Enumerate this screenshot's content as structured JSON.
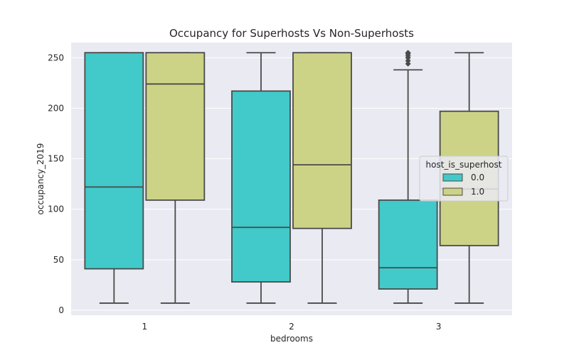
{
  "chart_data": {
    "type": "box",
    "title": "Occupancy for Superhosts Vs Non-Superhosts",
    "xlabel": "bedrooms",
    "ylabel": "occupancy_2019",
    "categories": [
      "1",
      "2",
      "3"
    ],
    "ylim": [
      -5,
      265
    ],
    "yticks": [
      0,
      50,
      100,
      150,
      200,
      250
    ],
    "grid": true,
    "legend": {
      "title": "host_is_superhost",
      "placement": "center-right",
      "entries": [
        "0.0",
        "1.0"
      ]
    },
    "series": [
      {
        "name": "0.0",
        "color": "#42c9c9",
        "boxes": [
          {
            "category": "1",
            "whislo": 7,
            "q1": 41,
            "med": 122,
            "q3": 255,
            "whishi": 255,
            "fliers": []
          },
          {
            "category": "2",
            "whislo": 7,
            "q1": 28,
            "med": 82,
            "q3": 217,
            "whishi": 255,
            "fliers": []
          },
          {
            "category": "3",
            "whislo": 7,
            "q1": 21,
            "med": 42,
            "q3": 109,
            "whishi": 238,
            "fliers": [
              244,
              247,
              250,
              252,
              254,
              255
            ]
          }
        ]
      },
      {
        "name": "1.0",
        "color": "#cdd386",
        "boxes": [
          {
            "category": "1",
            "whislo": 7,
            "q1": 109,
            "med": 224,
            "q3": 255,
            "whishi": 255,
            "fliers": []
          },
          {
            "category": "2",
            "whislo": 7,
            "q1": 81,
            "med": 144,
            "q3": 255,
            "whishi": 255,
            "fliers": []
          },
          {
            "category": "3",
            "whislo": 7,
            "q1": 64,
            "med": 120,
            "q3": 197,
            "whishi": 255,
            "fliers": []
          }
        ]
      }
    ],
    "colors": {
      "background": "#eaeaf2",
      "grid": "#ffffff",
      "line": "#4a4a4a"
    }
  }
}
